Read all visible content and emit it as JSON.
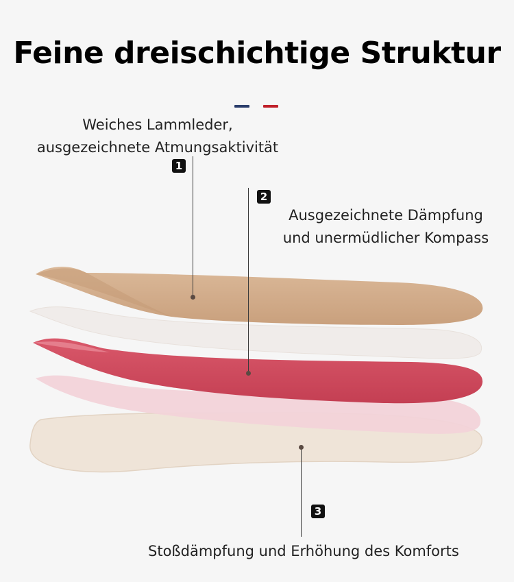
{
  "title": "Feine dreischichtige Struktur",
  "accent_colors": {
    "blue": "#2a3d6b",
    "red": "#c0202a"
  },
  "layers": [
    {
      "number": "1",
      "label_lines": [
        "Weiches Lammleder,",
        "ausgezeichnete Atmungsaktivität"
      ],
      "color": "#d2ad8c"
    },
    {
      "number": "2",
      "label_lines": [
        "Ausgezeichnete Dämpfung",
        "und unermüdlicher Kompass"
      ],
      "color": "#cf4a5c"
    },
    {
      "number": "3",
      "label_lines": [
        "Stoßdämpfung und Erhöhung des Komforts"
      ],
      "color": "#efe3d6"
    }
  ]
}
